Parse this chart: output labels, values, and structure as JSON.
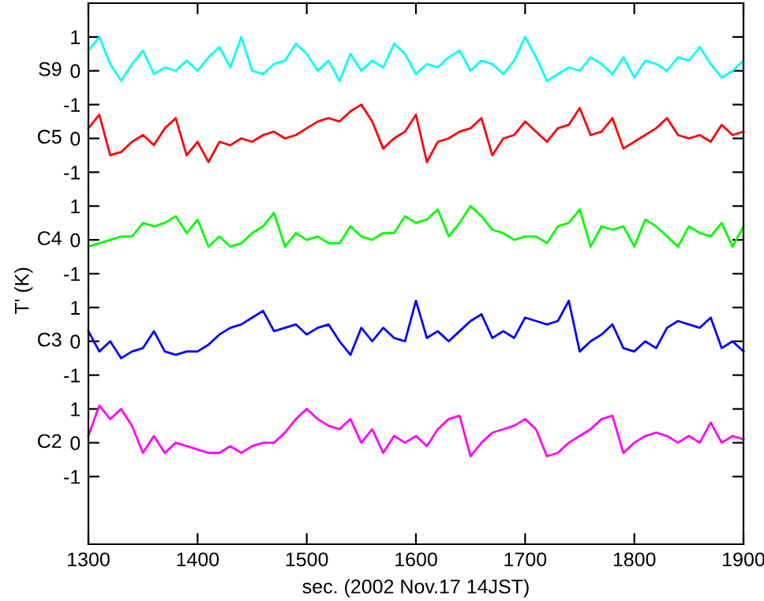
{
  "chart_data": [
    {
      "type": "line",
      "tick_labels": "y",
      "line_style": "solid",
      "x": [
        1300,
        1310,
        1320,
        1330,
        1340,
        1350,
        1360,
        1370,
        1380,
        1390,
        1400,
        1410,
        1420,
        1430,
        1440,
        1450,
        1460,
        1470,
        1480,
        1490,
        1500,
        1510,
        1520,
        1530,
        1540,
        1550,
        1560,
        1570,
        1580,
        1590,
        1600,
        1610,
        1620,
        1630,
        1640,
        1650,
        1660,
        1670,
        1680,
        1690,
        1700,
        1710,
        1720,
        1730,
        1740,
        1750,
        1760,
        1770,
        1780,
        1790,
        1800,
        1810,
        1820,
        1830,
        1840,
        1850,
        1860,
        1870,
        1880,
        1890,
        1900
      ],
      "series": [
        {
          "name": "S9",
          "color": "#00ffff",
          "values": [
            0.6,
            1.0,
            0.2,
            -0.3,
            0.2,
            0.6,
            -0.1,
            0.1,
            0.0,
            0.3,
            0.0,
            0.4,
            0.7,
            0.1,
            1.0,
            0.0,
            -0.1,
            0.2,
            0.3,
            0.8,
            0.5,
            0.0,
            0.3,
            -0.3,
            0.5,
            0.0,
            0.3,
            0.1,
            0.8,
            0.5,
            -0.1,
            0.2,
            0.1,
            0.4,
            0.6,
            0.0,
            0.3,
            0.2,
            -0.1,
            0.3,
            1.0,
            0.4,
            -0.3,
            -0.1,
            0.1,
            0.0,
            0.4,
            0.2,
            -0.1,
            0.4,
            -0.2,
            0.3,
            0.2,
            0.0,
            0.4,
            0.3,
            0.7,
            0.2,
            -0.2,
            0.0,
            0.3
          ]
        }
      ],
      "xlim": [
        1300,
        1900
      ],
      "xticks": [
        {
          "value": 1300,
          "label": null
        },
        {
          "value": 1400,
          "label": null
        },
        {
          "value": 1500,
          "label": null
        },
        {
          "value": 1600,
          "label": null
        },
        {
          "value": 1700,
          "label": null
        },
        {
          "value": 1800,
          "label": null
        },
        {
          "value": 1900,
          "label": null
        }
      ],
      "ylim": [
        -1,
        2
      ],
      "yticks": [
        -1,
        0,
        1
      ]
    },
    {
      "type": "line",
      "tick_labels": "y",
      "line_style": "solid",
      "grid": false,
      "x": [
        1300,
        1310,
        1320,
        1330,
        1340,
        1350,
        1360,
        1370,
        1380,
        1390,
        1400,
        1410,
        1420,
        1430,
        1440,
        1450,
        1460,
        1470,
        1480,
        1490,
        1500,
        1510,
        1520,
        1530,
        1540,
        1550,
        1560,
        1570,
        1580,
        1590,
        1600,
        1610,
        1620,
        1630,
        1640,
        1650,
        1660,
        1670,
        1680,
        1690,
        1700,
        1710,
        1720,
        1730,
        1740,
        1750,
        1760,
        1770,
        1780,
        1790,
        1800,
        1810,
        1820,
        1830,
        1840,
        1850,
        1860,
        1870,
        1880,
        1890,
        1900
      ],
      "series": [
        {
          "name": "C5",
          "color": "#ff0000",
          "values": [
            0.3,
            0.7,
            -0.5,
            -0.4,
            -0.1,
            0.1,
            -0.2,
            0.3,
            0.6,
            -0.5,
            -0.1,
            -0.7,
            -0.1,
            -0.2,
            0.0,
            -0.1,
            0.1,
            0.2,
            0.0,
            0.1,
            0.3,
            0.5,
            0.6,
            0.5,
            0.8,
            1.0,
            0.5,
            -0.3,
            0.0,
            0.2,
            0.7,
            -0.7,
            -0.1,
            0.0,
            0.2,
            0.3,
            0.6,
            -0.5,
            0.0,
            0.1,
            0.5,
            0.2,
            -0.1,
            0.3,
            0.4,
            0.9,
            0.1,
            0.2,
            0.6,
            -0.3,
            -0.1,
            0.1,
            0.3,
            0.6,
            0.1,
            0.0,
            0.1,
            -0.1,
            0.4,
            0.1,
            0.2
          ]
        }
      ],
      "xlim": [
        1300,
        1900
      ],
      "ylim": [
        -1.5,
        1
      ],
      "yticks": [
        -1,
        0
      ]
    },
    {
      "type": "line",
      "tick_labels": "y",
      "line_style": "solid",
      "grid": false,
      "ylabel": "T' (K)",
      "x": [
        1300,
        1310,
        1320,
        1330,
        1340,
        1350,
        1360,
        1370,
        1380,
        1390,
        1400,
        1410,
        1420,
        1430,
        1440,
        1450,
        1460,
        1470,
        1480,
        1490,
        1500,
        1510,
        1520,
        1530,
        1540,
        1550,
        1560,
        1570,
        1580,
        1590,
        1600,
        1610,
        1620,
        1630,
        1640,
        1650,
        1660,
        1670,
        1680,
        1690,
        1700,
        1710,
        1720,
        1730,
        1740,
        1750,
        1760,
        1770,
        1780,
        1790,
        1800,
        1810,
        1820,
        1830,
        1840,
        1850,
        1860,
        1870,
        1880,
        1890,
        1900
      ],
      "series": [
        {
          "name": "C4",
          "color": "#00ff00",
          "values": [
            -0.2,
            -0.1,
            0.0,
            0.1,
            0.1,
            0.5,
            0.4,
            0.5,
            0.7,
            0.2,
            0.6,
            -0.2,
            0.1,
            -0.2,
            -0.1,
            0.2,
            0.4,
            0.8,
            -0.2,
            0.2,
            0.0,
            0.1,
            -0.1,
            -0.1,
            0.4,
            0.1,
            0.0,
            0.2,
            0.2,
            0.7,
            0.5,
            0.6,
            0.9,
            0.1,
            0.5,
            1.0,
            0.7,
            0.3,
            0.2,
            0.0,
            0.1,
            0.1,
            -0.1,
            0.4,
            0.5,
            0.9,
            -0.2,
            0.4,
            0.3,
            0.4,
            -0.2,
            0.6,
            0.4,
            0.1,
            -0.2,
            0.4,
            0.2,
            0.1,
            0.5,
            -0.2,
            0.4
          ]
        }
      ],
      "xlim": [
        1300,
        1900
      ],
      "ylim": [
        -1.5,
        1.5
      ],
      "yticks": [
        -1,
        0,
        1
      ]
    },
    {
      "type": "line",
      "tick_labels": "y",
      "line_style": "solid",
      "grid": false,
      "x": [
        1300,
        1310,
        1320,
        1330,
        1340,
        1350,
        1360,
        1370,
        1380,
        1390,
        1400,
        1410,
        1420,
        1430,
        1440,
        1450,
        1460,
        1470,
        1480,
        1490,
        1500,
        1510,
        1520,
        1530,
        1540,
        1550,
        1560,
        1570,
        1580,
        1590,
        1600,
        1610,
        1620,
        1630,
        1640,
        1650,
        1660,
        1670,
        1680,
        1690,
        1700,
        1710,
        1720,
        1730,
        1740,
        1750,
        1760,
        1770,
        1780,
        1790,
        1800,
        1810,
        1820,
        1830,
        1840,
        1850,
        1860,
        1870,
        1880,
        1890,
        1900
      ],
      "series": [
        {
          "name": "C3",
          "color": "#0000ff",
          "values": [
            0.3,
            -0.3,
            0.0,
            -0.5,
            -0.3,
            -0.2,
            0.3,
            -0.3,
            -0.4,
            -0.3,
            -0.3,
            -0.1,
            0.2,
            0.4,
            0.5,
            0.7,
            0.9,
            0.3,
            0.4,
            0.5,
            0.2,
            0.4,
            0.5,
            0.0,
            -0.4,
            0.4,
            0.0,
            0.4,
            0.1,
            0.0,
            1.2,
            0.1,
            0.3,
            0.0,
            0.3,
            0.6,
            0.8,
            0.1,
            0.3,
            0.1,
            0.7,
            0.6,
            0.5,
            0.6,
            1.2,
            -0.3,
            0.0,
            0.2,
            0.5,
            -0.2,
            -0.3,
            0.0,
            -0.2,
            0.4,
            0.6,
            0.5,
            0.4,
            0.7,
            -0.2,
            0.0,
            -0.3
          ]
        }
      ],
      "xlim": [
        1300,
        1900
      ],
      "ylim": [
        -1.5,
        1.5
      ],
      "yticks": [
        -1,
        0,
        1
      ]
    },
    {
      "type": "line",
      "line_style": "solid",
      "grid": false,
      "xlabel": "sec. (2002 Nov.17 14JST)",
      "x": [
        1300,
        1310,
        1320,
        1330,
        1340,
        1350,
        1360,
        1370,
        1380,
        1390,
        1400,
        1410,
        1420,
        1430,
        1440,
        1450,
        1460,
        1470,
        1480,
        1490,
        1500,
        1510,
        1520,
        1530,
        1540,
        1550,
        1560,
        1570,
        1580,
        1590,
        1600,
        1610,
        1620,
        1630,
        1640,
        1650,
        1660,
        1670,
        1680,
        1690,
        1700,
        1710,
        1720,
        1730,
        1740,
        1750,
        1760,
        1770,
        1780,
        1790,
        1800,
        1810,
        1820,
        1830,
        1840,
        1850,
        1860,
        1870,
        1880,
        1890,
        1900
      ],
      "series": [
        {
          "name": "C2",
          "color": "#ff00ff",
          "values": [
            0.2,
            1.1,
            0.7,
            1.0,
            0.5,
            -0.3,
            0.2,
            -0.3,
            0.0,
            -0.1,
            -0.2,
            -0.3,
            -0.3,
            -0.1,
            -0.3,
            -0.1,
            0.0,
            0.0,
            0.3,
            0.7,
            1.0,
            0.7,
            0.5,
            0.4,
            0.7,
            0.0,
            0.4,
            -0.3,
            0.2,
            0.0,
            0.2,
            -0.1,
            0.4,
            0.7,
            0.8,
            -0.4,
            0.0,
            0.3,
            0.4,
            0.5,
            0.7,
            0.4,
            -0.4,
            -0.3,
            0.0,
            0.2,
            0.4,
            0.7,
            0.8,
            -0.3,
            0.0,
            0.2,
            0.3,
            0.2,
            0.0,
            0.2,
            0.0,
            0.6,
            0.0,
            0.2,
            0.1
          ]
        }
      ],
      "xlim": [
        1300,
        1900
      ],
      "xticks": [
        1300,
        1400,
        1500,
        1600,
        1700,
        1800,
        1900
      ],
      "ylim": [
        -3,
        1.5
      ],
      "yticks": [
        -1,
        0,
        1
      ]
    }
  ]
}
